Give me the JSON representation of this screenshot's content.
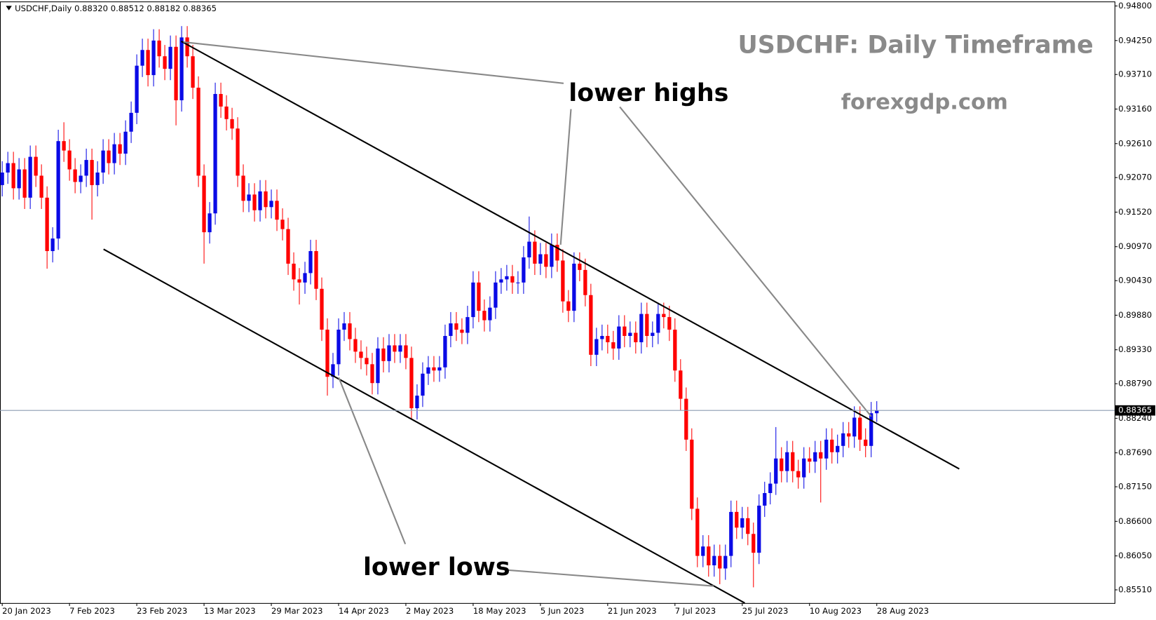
{
  "chart_data": {
    "type": "candlestick",
    "header": "USDCHF,Daily  0.88320 0.88512 0.88182 0.88365",
    "title": "USDCHF: Daily Timeframe",
    "subtitle": "forexgdp.com",
    "annotations": [
      "lower highs",
      "lower lows"
    ],
    "up_color": "#0a0ae6",
    "down_color": "#ff0000",
    "grid": false,
    "ylim": [
      0.853,
      0.9486
    ],
    "yticks": [
      {
        "value": 0.948,
        "label": "0.94800"
      },
      {
        "value": 0.9425,
        "label": "0.94250"
      },
      {
        "value": 0.9371,
        "label": "0.93710"
      },
      {
        "value": 0.9316,
        "label": "0.93160"
      },
      {
        "value": 0.9261,
        "label": "0.92610"
      },
      {
        "value": 0.9207,
        "label": "0.92070"
      },
      {
        "value": 0.9152,
        "label": "0.91520"
      },
      {
        "value": 0.9097,
        "label": "0.90970"
      },
      {
        "value": 0.9043,
        "label": "0.90430"
      },
      {
        "value": 0.8988,
        "label": "0.89880"
      },
      {
        "value": 0.8933,
        "label": "0.89330"
      },
      {
        "value": 0.8879,
        "label": "0.88790"
      },
      {
        "value": 0.8824,
        "label": "0.88240"
      },
      {
        "value": 0.8769,
        "label": "0.87690"
      },
      {
        "value": 0.8715,
        "label": "0.87150"
      },
      {
        "value": 0.866,
        "label": "0.86600"
      },
      {
        "value": 0.8605,
        "label": "0.86050"
      },
      {
        "value": 0.8551,
        "label": "0.85510"
      }
    ],
    "price_line": {
      "value": 0.88365,
      "label": "0.88365"
    },
    "categories": [
      "20 Jan 2023",
      null,
      null,
      null,
      null,
      null,
      null,
      null,
      null,
      null,
      null,
      null,
      "7 Feb 2023",
      null,
      null,
      null,
      null,
      null,
      null,
      null,
      null,
      null,
      null,
      null,
      "23 Feb 2023",
      null,
      null,
      null,
      null,
      null,
      null,
      null,
      null,
      null,
      null,
      null,
      "13 Mar 2023",
      null,
      null,
      null,
      null,
      null,
      null,
      null,
      null,
      null,
      null,
      null,
      "29 Mar 2023",
      null,
      null,
      null,
      null,
      null,
      null,
      null,
      null,
      null,
      null,
      null,
      "14 Apr 2023",
      null,
      null,
      null,
      null,
      null,
      null,
      null,
      null,
      null,
      null,
      null,
      "2 May 2023",
      null,
      null,
      null,
      null,
      null,
      null,
      null,
      null,
      null,
      null,
      null,
      "18 May 2023",
      null,
      null,
      null,
      null,
      null,
      null,
      null,
      null,
      null,
      null,
      null,
      "5 Jun 2023",
      null,
      null,
      null,
      null,
      null,
      null,
      null,
      null,
      null,
      null,
      null,
      "21 Jun 2023",
      null,
      null,
      null,
      null,
      null,
      null,
      null,
      null,
      null,
      null,
      null,
      "7 Jul 2023",
      null,
      null,
      null,
      null,
      null,
      null,
      null,
      null,
      null,
      null,
      null,
      "25 Jul 2023",
      null,
      null,
      null,
      null,
      null,
      null,
      null,
      null,
      null,
      null,
      null,
      "10 Aug 2023",
      null,
      null,
      null,
      null,
      null,
      null,
      null,
      null,
      null,
      null,
      null,
      "28 Aug 2023"
    ],
    "open": [
      0.9195,
      0.9215,
      0.923,
      0.919,
      0.922,
      0.9175,
      0.924,
      0.921,
      0.9175,
      0.909,
      0.911,
      0.9265,
      0.925,
      0.922,
      0.92,
      0.921,
      0.9235,
      0.9195,
      0.9215,
      0.925,
      0.923,
      0.926,
      0.9245,
      0.928,
      0.931,
      0.9385,
      0.941,
      0.937,
      0.9425,
      0.94,
      0.938,
      0.9415,
      0.933,
      0.943,
      0.94,
      0.935,
      0.921,
      0.912,
      0.915,
      0.934,
      0.932,
      0.93,
      0.9285,
      0.921,
      0.917,
      0.918,
      0.9155,
      0.9185,
      0.916,
      0.917,
      0.914,
      0.9125,
      0.907,
      0.9045,
      0.904,
      0.9055,
      0.909,
      0.903,
      0.8965,
      0.889,
      0.891,
      0.8965,
      0.8975,
      0.895,
      0.893,
      0.892,
      0.891,
      0.888,
      0.8935,
      0.8915,
      0.894,
      0.893,
      0.894,
      0.892,
      0.884,
      0.886,
      0.8895,
      0.8905,
      0.89,
      0.8905,
      0.8955,
      0.8975,
      0.8965,
      0.896,
      0.8985,
      0.904,
      0.8995,
      0.898,
      0.9,
      0.904,
      0.9045,
      0.905,
      0.904,
      0.904,
      0.908,
      0.9105,
      0.907,
      0.9085,
      0.9065,
      0.91,
      0.9075,
      0.901,
      0.8995,
      0.907,
      0.906,
      0.902,
      0.8925,
      0.895,
      0.8955,
      0.8945,
      0.8935,
      0.897,
      0.8955,
      0.896,
      0.8945,
      0.899,
      0.8955,
      0.896,
      0.899,
      0.8985,
      0.8965,
      0.89,
      0.8855,
      0.879,
      0.868,
      0.8605,
      0.862,
      0.859,
      0.8605,
      0.8585,
      0.8605,
      0.8675,
      0.865,
      0.8665,
      0.864,
      0.861,
      0.8685,
      0.8705,
      0.872,
      0.876,
      0.874,
      0.877,
      0.874,
      0.873,
      0.876,
      0.8755,
      0.877,
      0.876,
      0.879,
      0.877,
      0.878,
      0.88,
      0.8795,
      0.8825,
      0.879,
      0.878,
      0.8832
    ],
    "high": [
      0.9233,
      0.9248,
      0.9248,
      0.9238,
      0.9238,
      0.9258,
      0.9258,
      0.9228,
      0.9193,
      0.9128,
      0.9283,
      0.9295,
      0.9268,
      0.9238,
      0.9228,
      0.9253,
      0.9253,
      0.9233,
      0.9268,
      0.9268,
      0.9278,
      0.9278,
      0.9298,
      0.9328,
      0.9403,
      0.9428,
      0.9428,
      0.9443,
      0.9443,
      0.9418,
      0.9433,
      0.9433,
      0.9448,
      0.9448,
      0.9418,
      0.9368,
      0.9228,
      0.9168,
      0.9358,
      0.9358,
      0.9338,
      0.9318,
      0.9303,
      0.9228,
      0.9198,
      0.9198,
      0.9203,
      0.9203,
      0.9188,
      0.9188,
      0.9158,
      0.9143,
      0.9088,
      0.9063,
      0.9073,
      0.9108,
      0.9108,
      0.9048,
      0.8983,
      0.8928,
      0.8983,
      0.8993,
      0.8993,
      0.8968,
      0.8948,
      0.8938,
      0.8928,
      0.8953,
      0.8953,
      0.8958,
      0.8958,
      0.8958,
      0.8958,
      0.8938,
      0.8878,
      0.8913,
      0.8923,
      0.8923,
      0.8923,
      0.8973,
      0.8993,
      0.8993,
      0.8983,
      0.9003,
      0.9058,
      0.9058,
      0.9013,
      0.9018,
      0.9058,
      0.9063,
      0.9068,
      0.9068,
      0.9058,
      0.9098,
      0.9145,
      0.9123,
      0.9103,
      0.9103,
      0.9118,
      0.9118,
      0.9093,
      0.9028,
      0.9088,
      0.9088,
      0.9078,
      0.9038,
      0.8968,
      0.8973,
      0.8973,
      0.8963,
      0.8988,
      0.8988,
      0.8978,
      0.8978,
      0.9008,
      0.9008,
      0.8978,
      0.9008,
      0.9008,
      0.9003,
      0.8983,
      0.8918,
      0.8873,
      0.8808,
      0.8698,
      0.8638,
      0.8638,
      0.8623,
      0.8623,
      0.8623,
      0.8693,
      0.8693,
      0.8683,
      0.8683,
      0.8658,
      0.8703,
      0.8723,
      0.8738,
      0.881,
      0.8778,
      0.8788,
      0.8788,
      0.8758,
      0.8778,
      0.8778,
      0.8788,
      0.8788,
      0.8808,
      0.8808,
      0.8798,
      0.8818,
      0.8818,
      0.8843,
      0.8843,
      0.8808,
      0.885,
      0.88512
    ],
    "low": [
      0.9177,
      0.9197,
      0.9172,
      0.9172,
      0.9157,
      0.9157,
      0.9192,
      0.9157,
      0.9062,
      0.9072,
      0.9092,
      0.9232,
      0.9202,
      0.9182,
      0.9182,
      0.9192,
      0.914,
      0.9177,
      0.9197,
      0.9212,
      0.9212,
      0.9227,
      0.9227,
      0.9262,
      0.9292,
      0.9367,
      0.9352,
      0.9352,
      0.9382,
      0.9362,
      0.9362,
      0.929,
      0.9312,
      0.9382,
      0.9332,
      0.9192,
      0.907,
      0.9102,
      0.9132,
      0.9302,
      0.9282,
      0.9267,
      0.9192,
      0.9152,
      0.9152,
      0.9137,
      0.9137,
      0.9142,
      0.9142,
      0.9122,
      0.9107,
      0.9052,
      0.9027,
      0.9005,
      0.9022,
      0.9037,
      0.9012,
      0.8947,
      0.886,
      0.8872,
      0.8892,
      0.8947,
      0.8932,
      0.8912,
      0.8902,
      0.8892,
      0.8862,
      0.8862,
      0.8897,
      0.8897,
      0.8912,
      0.8912,
      0.8902,
      0.8822,
      0.8822,
      0.8842,
      0.8877,
      0.8882,
      0.8882,
      0.8887,
      0.8937,
      0.8947,
      0.8942,
      0.8942,
      0.8967,
      0.8977,
      0.8962,
      0.8962,
      0.8982,
      0.9022,
      0.9027,
      0.9022,
      0.9022,
      0.9022,
      0.9062,
      0.9052,
      0.9052,
      0.9047,
      0.9047,
      0.9057,
      0.8992,
      0.8977,
      0.8977,
      0.9042,
      0.9002,
      0.8907,
      0.8907,
      0.8932,
      0.8927,
      0.8917,
      0.8917,
      0.8937,
      0.8937,
      0.8927,
      0.8927,
      0.8937,
      0.8937,
      0.8942,
      0.8967,
      0.8947,
      0.8882,
      0.8837,
      0.8772,
      0.8662,
      0.8587,
      0.8587,
      0.8572,
      0.8572,
      0.856,
      0.8567,
      0.8587,
      0.8632,
      0.8632,
      0.8622,
      0.8555,
      0.8592,
      0.8667,
      0.8687,
      0.8702,
      0.8722,
      0.8722,
      0.8722,
      0.8712,
      0.8712,
      0.8737,
      0.8737,
      0.869,
      0.8742,
      0.8752,
      0.8752,
      0.8762,
      0.8777,
      0.8777,
      0.8772,
      0.8762,
      0.8762,
      0.88182
    ],
    "close": [
      0.9215,
      0.923,
      0.919,
      0.922,
      0.9175,
      0.924,
      0.921,
      0.9175,
      0.909,
      0.911,
      0.9265,
      0.925,
      0.922,
      0.92,
      0.921,
      0.9235,
      0.9195,
      0.9215,
      0.925,
      0.923,
      0.926,
      0.9245,
      0.928,
      0.931,
      0.9385,
      0.941,
      0.937,
      0.9425,
      0.94,
      0.938,
      0.9415,
      0.933,
      0.943,
      0.94,
      0.935,
      0.921,
      0.912,
      0.915,
      0.934,
      0.932,
      0.93,
      0.9285,
      0.921,
      0.917,
      0.918,
      0.9155,
      0.9185,
      0.916,
      0.917,
      0.914,
      0.9125,
      0.907,
      0.9045,
      0.904,
      0.9055,
      0.909,
      0.903,
      0.8965,
      0.889,
      0.891,
      0.8965,
      0.8975,
      0.895,
      0.893,
      0.892,
      0.891,
      0.888,
      0.8935,
      0.8915,
      0.894,
      0.893,
      0.894,
      0.892,
      0.884,
      0.886,
      0.8895,
      0.8905,
      0.89,
      0.8905,
      0.8955,
      0.8975,
      0.8965,
      0.896,
      0.8985,
      0.904,
      0.8995,
      0.898,
      0.9,
      0.904,
      0.9045,
      0.905,
      0.904,
      0.904,
      0.908,
      0.9105,
      0.907,
      0.9085,
      0.9065,
      0.91,
      0.9075,
      0.901,
      0.8995,
      0.907,
      0.906,
      0.902,
      0.8925,
      0.895,
      0.8955,
      0.8945,
      0.8935,
      0.897,
      0.8955,
      0.896,
      0.8945,
      0.899,
      0.8955,
      0.896,
      0.899,
      0.8985,
      0.8965,
      0.89,
      0.8855,
      0.879,
      0.868,
      0.8605,
      0.862,
      0.859,
      0.8605,
      0.8585,
      0.8605,
      0.8675,
      0.865,
      0.8665,
      0.864,
      0.861,
      0.8685,
      0.8705,
      0.872,
      0.876,
      0.874,
      0.877,
      0.874,
      0.873,
      0.876,
      0.8755,
      0.877,
      0.876,
      0.879,
      0.877,
      0.878,
      0.88,
      0.8795,
      0.8825,
      0.879,
      0.878,
      0.8832,
      0.88365
    ]
  }
}
